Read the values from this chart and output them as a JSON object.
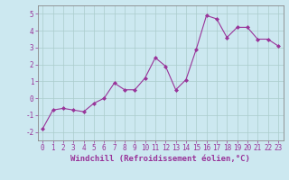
{
  "x": [
    0,
    1,
    2,
    3,
    4,
    5,
    6,
    7,
    8,
    9,
    10,
    11,
    12,
    13,
    14,
    15,
    16,
    17,
    18,
    19,
    20,
    21,
    22,
    23
  ],
  "y": [
    -1.8,
    -0.7,
    -0.6,
    -0.7,
    -0.8,
    -0.3,
    0.0,
    0.9,
    0.5,
    0.5,
    1.2,
    2.4,
    1.9,
    0.5,
    1.1,
    2.9,
    4.9,
    4.7,
    3.6,
    4.2,
    4.2,
    3.5,
    3.5,
    3.1
  ],
  "line_color": "#993399",
  "marker": "D",
  "marker_size": 2,
  "bg_color": "#cce8f0",
  "grid_color": "#aacccc",
  "xlabel": "Windchill (Refroidissement éolien,°C)",
  "ylim": [
    -2.5,
    5.5
  ],
  "xlim": [
    -0.5,
    23.5
  ],
  "yticks": [
    -2,
    -1,
    0,
    1,
    2,
    3,
    4,
    5
  ],
  "xticks": [
    0,
    1,
    2,
    3,
    4,
    5,
    6,
    7,
    8,
    9,
    10,
    11,
    12,
    13,
    14,
    15,
    16,
    17,
    18,
    19,
    20,
    21,
    22,
    23
  ],
  "tick_label_fontsize": 5.5,
  "xlabel_fontsize": 6.5,
  "axis_color": "#993399",
  "spine_color": "#888888"
}
